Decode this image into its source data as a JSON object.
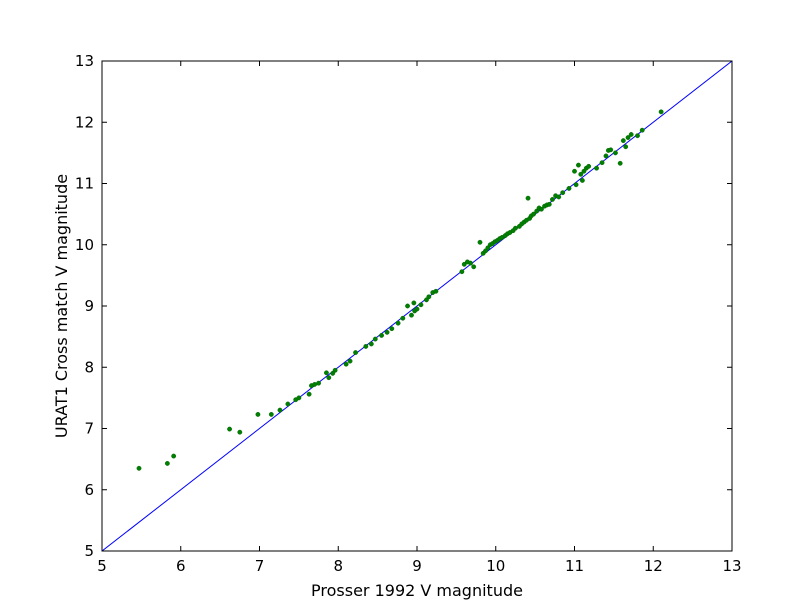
{
  "chart_data": {
    "type": "scatter",
    "title": "",
    "xlabel": "Prosser 1992 V magnitude",
    "ylabel": "URAT1 Cross match V magnitude",
    "xlim": [
      5,
      13
    ],
    "ylim": [
      5,
      13
    ],
    "xticks": [
      "5",
      "6",
      "7",
      "8",
      "9",
      "10",
      "11",
      "12",
      "13"
    ],
    "yticks": [
      "5",
      "6",
      "7",
      "8",
      "9",
      "10",
      "11",
      "12",
      "13"
    ],
    "grid": false,
    "legend": "none",
    "colors": {
      "points": "#008000",
      "reference_line": "#0000ff",
      "axes": "#000000"
    },
    "reference_line": {
      "x": [
        5,
        13
      ],
      "y": [
        5,
        13
      ]
    },
    "series": [
      {
        "x": [
          5.47,
          5.83,
          5.91,
          6.62,
          6.75,
          6.98,
          7.15,
          7.26,
          7.36,
          7.46,
          7.5,
          7.63,
          7.66,
          7.7,
          7.75,
          7.85,
          7.88,
          7.93,
          7.96,
          8.1,
          8.15,
          8.22,
          8.35,
          8.42,
          8.47,
          8.55,
          8.62,
          8.68,
          8.76,
          8.82,
          8.88,
          8.93,
          8.96,
          8.97,
          9.0,
          9.05,
          9.12,
          9.15,
          9.2,
          9.24,
          9.57,
          9.6,
          9.64,
          9.68,
          9.72,
          9.8,
          9.84,
          9.87,
          9.9,
          9.93,
          9.96,
          9.99,
          10.02,
          10.05,
          10.08,
          10.12,
          10.15,
          10.18,
          10.22,
          10.25,
          10.3,
          10.33,
          10.36,
          10.39,
          10.41,
          10.43,
          10.45,
          10.48,
          10.52,
          10.55,
          10.58,
          10.62,
          10.65,
          10.68,
          10.72,
          10.76,
          10.8,
          10.85,
          10.93,
          11.0,
          11.02,
          11.05,
          11.08,
          11.1,
          11.12,
          11.15,
          11.18,
          11.28,
          11.35,
          11.4,
          11.43,
          11.46,
          11.52,
          11.58,
          11.62,
          11.65,
          11.68,
          11.72,
          11.8,
          11.86,
          12.1
        ],
        "y": [
          6.35,
          6.43,
          6.55,
          6.99,
          6.94,
          7.23,
          7.23,
          7.3,
          7.4,
          7.47,
          7.5,
          7.56,
          7.7,
          7.72,
          7.74,
          7.91,
          7.83,
          7.9,
          7.95,
          8.05,
          8.1,
          8.24,
          8.34,
          8.38,
          8.46,
          8.52,
          8.57,
          8.63,
          8.72,
          8.8,
          9.0,
          8.85,
          9.05,
          8.92,
          8.95,
          9.02,
          9.1,
          9.15,
          9.22,
          9.24,
          9.56,
          9.68,
          9.72,
          9.7,
          9.64,
          10.04,
          9.86,
          9.9,
          9.95,
          10.0,
          10.02,
          10.05,
          10.07,
          10.1,
          10.12,
          10.15,
          10.18,
          10.2,
          10.23,
          10.27,
          10.3,
          10.34,
          10.37,
          10.4,
          10.76,
          10.43,
          10.47,
          10.5,
          10.55,
          10.6,
          10.58,
          10.63,
          10.65,
          10.66,
          10.74,
          10.8,
          10.78,
          10.85,
          10.92,
          11.2,
          10.98,
          11.3,
          11.15,
          11.05,
          11.2,
          11.25,
          11.28,
          11.25,
          11.34,
          11.45,
          11.54,
          11.55,
          11.5,
          11.33,
          11.7,
          11.6,
          11.75,
          11.8,
          11.78,
          11.87,
          12.17
        ]
      }
    ]
  }
}
